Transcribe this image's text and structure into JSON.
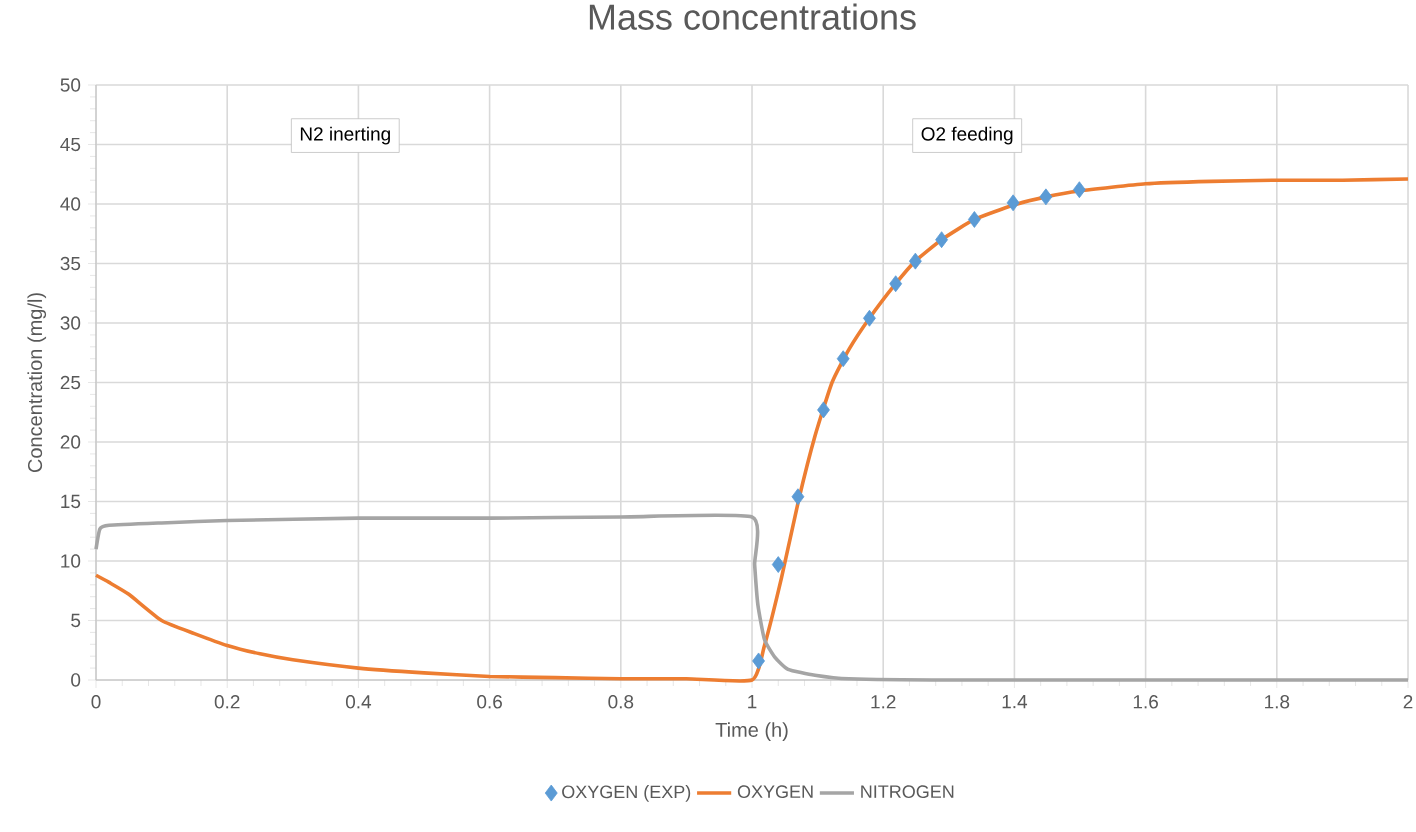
{
  "chart_data": {
    "type": "line",
    "title": "Mass concentrations",
    "xlabel": "Time (h)",
    "ylabel": "Concentration (mg/l)",
    "xlim": [
      0,
      2
    ],
    "ylim": [
      0,
      50
    ],
    "xticks": [
      0,
      {
        "value": 0.2,
        "label": "0.2"
      },
      {
        "value": 0.4,
        "label": "0.4"
      },
      {
        "value": 0.6,
        "label": "0.6"
      },
      {
        "value": 0.8,
        "label": "0.8"
      },
      1,
      {
        "value": 1.2,
        "label": "1.2"
      },
      {
        "value": 1.4,
        "label": "1.4"
      },
      {
        "value": 1.6,
        "label": "1.6"
      },
      {
        "value": 1.8,
        "label": "1.8"
      },
      2
    ],
    "yticks": [
      0,
      5,
      10,
      15,
      20,
      25,
      30,
      35,
      40,
      45,
      50
    ],
    "grid": true,
    "legend": "bottom",
    "annotations": [
      "N2 inerting",
      "O2 feeding"
    ],
    "series": [
      {
        "name": "OXYGEN (EXP)",
        "type": "scatter",
        "marker": "diamond",
        "color": "#5b9bd5",
        "x": [
          1.01,
          1.04,
          1.07,
          1.109,
          1.139,
          1.179,
          1.219,
          1.249,
          1.289,
          1.339,
          1.398,
          1.448,
          1.499
        ],
        "values": [
          1.6,
          9.7,
          15.4,
          22.7,
          27.0,
          30.4,
          33.3,
          35.2,
          37.0,
          38.7,
          40.1,
          40.6,
          41.2
        ]
      },
      {
        "name": "OXYGEN",
        "color": "#ed7d31",
        "x": [
          0,
          0.02,
          0.05,
          0.1,
          0.15,
          0.2,
          0.25,
          0.3,
          0.4,
          0.5,
          0.6,
          0.7,
          0.8,
          0.9,
          1.0,
          1.019,
          1.045,
          1.071,
          1.096,
          1.122,
          1.148,
          1.179,
          1.219,
          1.249,
          1.289,
          1.339,
          1.398,
          1.448,
          1.499,
          1.6,
          1.7,
          1.8,
          1.9,
          2.0
        ],
        "values": [
          8.8,
          8.2,
          7.2,
          5.0,
          3.9,
          2.9,
          2.2,
          1.7,
          1.0,
          0.6,
          0.3,
          0.2,
          0.1,
          0.1,
          0,
          2.9,
          8.6,
          15.1,
          20.5,
          25.0,
          27.8,
          30.4,
          33.3,
          35.2,
          37.0,
          38.7,
          39.9,
          40.6,
          41.1,
          41.7,
          41.9,
          42.0,
          42.0,
          42.1
        ]
      },
      {
        "name": "NITROGEN",
        "color": "#a5a5a5",
        "x": [
          0,
          0.006,
          0.02,
          0.1,
          0.2,
          0.4,
          0.6,
          0.8,
          1.0,
          1.004,
          1.009,
          1.019,
          1.035,
          1.055,
          1.096,
          1.148,
          1.3,
          2.0
        ],
        "values": [
          11.0,
          12.7,
          13.0,
          13.2,
          13.4,
          13.6,
          13.6,
          13.7,
          13.7,
          9.7,
          6.3,
          3.4,
          1.9,
          0.9,
          0.4,
          0.1,
          0,
          0
        ]
      }
    ]
  }
}
